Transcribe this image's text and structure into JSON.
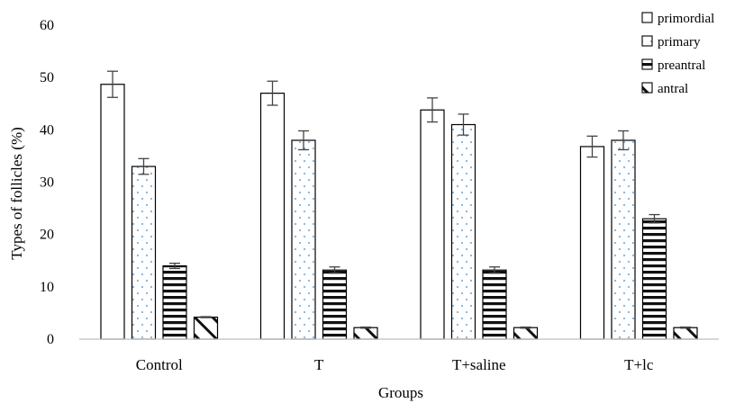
{
  "chart_data": {
    "type": "bar",
    "title": "",
    "xlabel": "Groups",
    "ylabel": "Types of follicles (%)",
    "ylim": [
      0,
      60
    ],
    "yticks": [
      0,
      10,
      20,
      30,
      40,
      50,
      60
    ],
    "grid": false,
    "legend_position": "top-right",
    "categories": [
      "Control",
      "T",
      "T+saline",
      "T+lc"
    ],
    "series": [
      {
        "name": "primordial",
        "pattern": "blank",
        "values": [
          48.7,
          47.0,
          43.8,
          36.8
        ],
        "errors": [
          2.5,
          2.3,
          2.3,
          2.0
        ]
      },
      {
        "name": "primary",
        "pattern": "dots",
        "values": [
          33.0,
          38.0,
          41.0,
          38.0
        ],
        "errors": [
          1.5,
          1.8,
          2.0,
          1.8
        ]
      },
      {
        "name": "preantral",
        "pattern": "horizontal-stripes",
        "values": [
          14.0,
          13.2,
          13.2,
          23.0
        ],
        "errors": [
          0.5,
          0.6,
          0.6,
          0.8
        ]
      },
      {
        "name": "antral",
        "pattern": "diagonal-hatch",
        "values": [
          4.2,
          2.2,
          2.2,
          2.2
        ],
        "errors": [
          0.1,
          0.1,
          0.1,
          0.1
        ]
      }
    ],
    "colors": {
      "outline": "#000000",
      "dots": "#7fb2e0",
      "error_bar": "#444444",
      "axis": "#bfbfbf"
    }
  }
}
